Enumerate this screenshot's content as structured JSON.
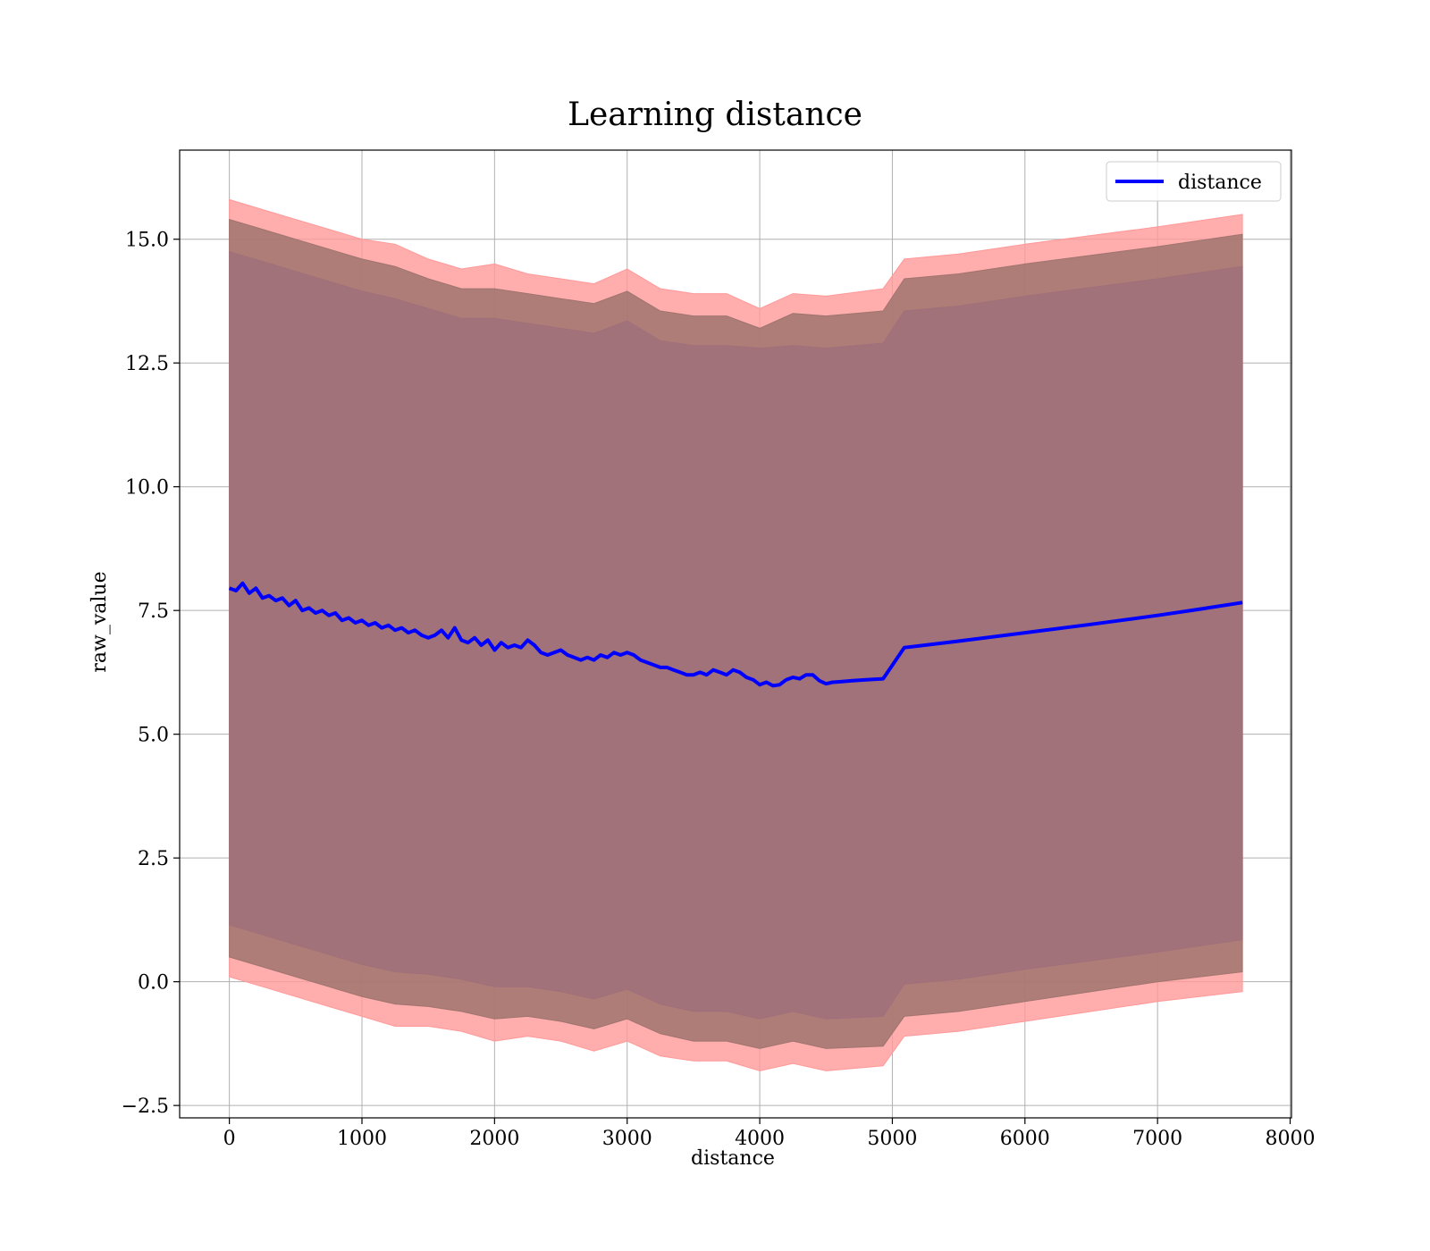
{
  "chart_data": {
    "type": "line",
    "title": "Learning distance",
    "xlabel": "distance",
    "ylabel": "raw_value",
    "xlim": [
      -375,
      8010
    ],
    "ylim": [
      -2.75,
      16.8
    ],
    "xticks": [
      0,
      1000,
      2000,
      3000,
      4000,
      5000,
      6000,
      7000,
      8000
    ],
    "xtick_labels": [
      "0",
      "1000",
      "2000",
      "3000",
      "4000",
      "5000",
      "6000",
      "7000",
      "8000"
    ],
    "yticks": [
      -2.5,
      0.0,
      2.5,
      5.0,
      7.5,
      10.0,
      12.5,
      15.0
    ],
    "ytick_labels": [
      "−2.5",
      "0.0",
      "2.5",
      "5.0",
      "7.5",
      "10.0",
      "12.5",
      "15.0"
    ],
    "grid": true,
    "legend": {
      "position": "top-right",
      "entries": [
        "distance"
      ]
    },
    "series": [
      {
        "name": "distance",
        "kind": "line",
        "color": "#0000ff",
        "x": [
          0,
          50,
          100,
          150,
          200,
          250,
          300,
          350,
          400,
          450,
          500,
          550,
          600,
          650,
          700,
          750,
          800,
          850,
          900,
          950,
          1000,
          1050,
          1100,
          1150,
          1200,
          1250,
          1300,
          1350,
          1400,
          1450,
          1500,
          1550,
          1600,
          1650,
          1700,
          1750,
          1800,
          1850,
          1900,
          1950,
          2000,
          2050,
          2100,
          2150,
          2200,
          2250,
          2300,
          2350,
          2400,
          2450,
          2500,
          2550,
          2600,
          2650,
          2700,
          2750,
          2800,
          2850,
          2900,
          2950,
          3000,
          3050,
          3100,
          3150,
          3200,
          3250,
          3300,
          3350,
          3400,
          3450,
          3500,
          3550,
          3600,
          3650,
          3700,
          3750,
          3800,
          3850,
          3900,
          3950,
          4000,
          4050,
          4100,
          4150,
          4200,
          4250,
          4300,
          4350,
          4400,
          4450,
          4500,
          4550,
          4600,
          4700,
          4800,
          4930,
          5090,
          5500,
          6000,
          6500,
          7000,
          7300,
          7640
        ],
        "y": [
          7.95,
          7.9,
          8.05,
          7.85,
          7.95,
          7.75,
          7.8,
          7.7,
          7.75,
          7.6,
          7.7,
          7.5,
          7.55,
          7.45,
          7.5,
          7.4,
          7.45,
          7.3,
          7.35,
          7.25,
          7.3,
          7.2,
          7.25,
          7.15,
          7.2,
          7.1,
          7.15,
          7.05,
          7.1,
          7.0,
          6.95,
          7.0,
          7.1,
          6.95,
          7.15,
          6.9,
          6.85,
          6.95,
          6.8,
          6.9,
          6.7,
          6.85,
          6.75,
          6.8,
          6.75,
          6.9,
          6.8,
          6.65,
          6.6,
          6.65,
          6.7,
          6.6,
          6.55,
          6.5,
          6.55,
          6.5,
          6.6,
          6.55,
          6.65,
          6.6,
          6.65,
          6.6,
          6.5,
          6.45,
          6.4,
          6.35,
          6.35,
          6.3,
          6.25,
          6.2,
          6.2,
          6.25,
          6.2,
          6.3,
          6.25,
          6.2,
          6.3,
          6.25,
          6.15,
          6.1,
          6.0,
          6.05,
          5.98,
          6.0,
          6.1,
          6.15,
          6.12,
          6.2,
          6.2,
          6.08,
          6.02,
          6.05,
          6.06,
          6.08,
          6.1,
          6.12,
          6.75,
          6.88,
          7.05,
          7.22,
          7.4,
          7.52,
          7.66
        ]
      },
      {
        "name": "",
        "kind": "band",
        "color": "#ff9999",
        "x": [
          0,
          250,
          500,
          750,
          1000,
          1250,
          1500,
          1750,
          2000,
          2250,
          2500,
          2750,
          3000,
          3250,
          3500,
          3750,
          4000,
          4250,
          4500,
          4930,
          5090,
          5500,
          6000,
          7000,
          7640
        ],
        "upper": [
          15.8,
          15.6,
          15.4,
          15.2,
          15.0,
          14.9,
          14.6,
          14.4,
          14.5,
          14.3,
          14.2,
          14.1,
          14.4,
          14.0,
          13.9,
          13.9,
          13.6,
          13.9,
          13.85,
          14.0,
          14.6,
          14.7,
          14.9,
          15.25,
          15.5
        ],
        "lower": [
          0.1,
          -0.1,
          -0.3,
          -0.5,
          -0.7,
          -0.9,
          -0.9,
          -1.0,
          -1.2,
          -1.1,
          -1.2,
          -1.4,
          -1.2,
          -1.5,
          -1.6,
          -1.6,
          -1.8,
          -1.65,
          -1.8,
          -1.7,
          -1.1,
          -1.0,
          -0.8,
          -0.4,
          -0.2
        ]
      },
      {
        "name": "",
        "kind": "band",
        "color": "#a0746e",
        "x": [
          0,
          250,
          500,
          750,
          1000,
          1250,
          1500,
          1750,
          2000,
          2250,
          2500,
          2750,
          3000,
          3250,
          3500,
          3750,
          4000,
          4250,
          4500,
          4930,
          5090,
          5500,
          6000,
          7000,
          7640
        ],
        "upper": [
          15.4,
          15.2,
          15.0,
          14.8,
          14.6,
          14.45,
          14.2,
          14.0,
          14.0,
          13.9,
          13.8,
          13.7,
          13.95,
          13.55,
          13.45,
          13.45,
          13.2,
          13.5,
          13.45,
          13.55,
          14.2,
          14.3,
          14.5,
          14.85,
          15.1
        ],
        "lower": [
          0.5,
          0.3,
          0.1,
          -0.1,
          -0.3,
          -0.45,
          -0.5,
          -0.6,
          -0.75,
          -0.7,
          -0.8,
          -0.95,
          -0.75,
          -1.05,
          -1.2,
          -1.2,
          -1.35,
          -1.2,
          -1.35,
          -1.3,
          -0.7,
          -0.6,
          -0.4,
          0.0,
          0.2
        ]
      },
      {
        "name": "",
        "kind": "band",
        "color": "#a0707a",
        "x": [
          0,
          250,
          500,
          750,
          1000,
          1250,
          1500,
          1750,
          2000,
          2250,
          2500,
          2750,
          3000,
          3250,
          3500,
          3750,
          4000,
          4250,
          4500,
          4930,
          5090,
          5500,
          6000,
          7000,
          7640
        ],
        "upper": [
          14.75,
          14.55,
          14.35,
          14.15,
          13.95,
          13.8,
          13.6,
          13.4,
          13.4,
          13.3,
          13.2,
          13.1,
          13.35,
          12.95,
          12.85,
          12.85,
          12.8,
          12.85,
          12.8,
          12.9,
          13.55,
          13.65,
          13.85,
          14.2,
          14.45
        ],
        "lower": [
          1.15,
          0.95,
          0.75,
          0.55,
          0.35,
          0.2,
          0.15,
          0.05,
          -0.1,
          -0.1,
          -0.2,
          -0.35,
          -0.15,
          -0.45,
          -0.6,
          -0.6,
          -0.75,
          -0.6,
          -0.75,
          -0.7,
          -0.05,
          0.05,
          0.25,
          0.6,
          0.85
        ]
      }
    ]
  }
}
